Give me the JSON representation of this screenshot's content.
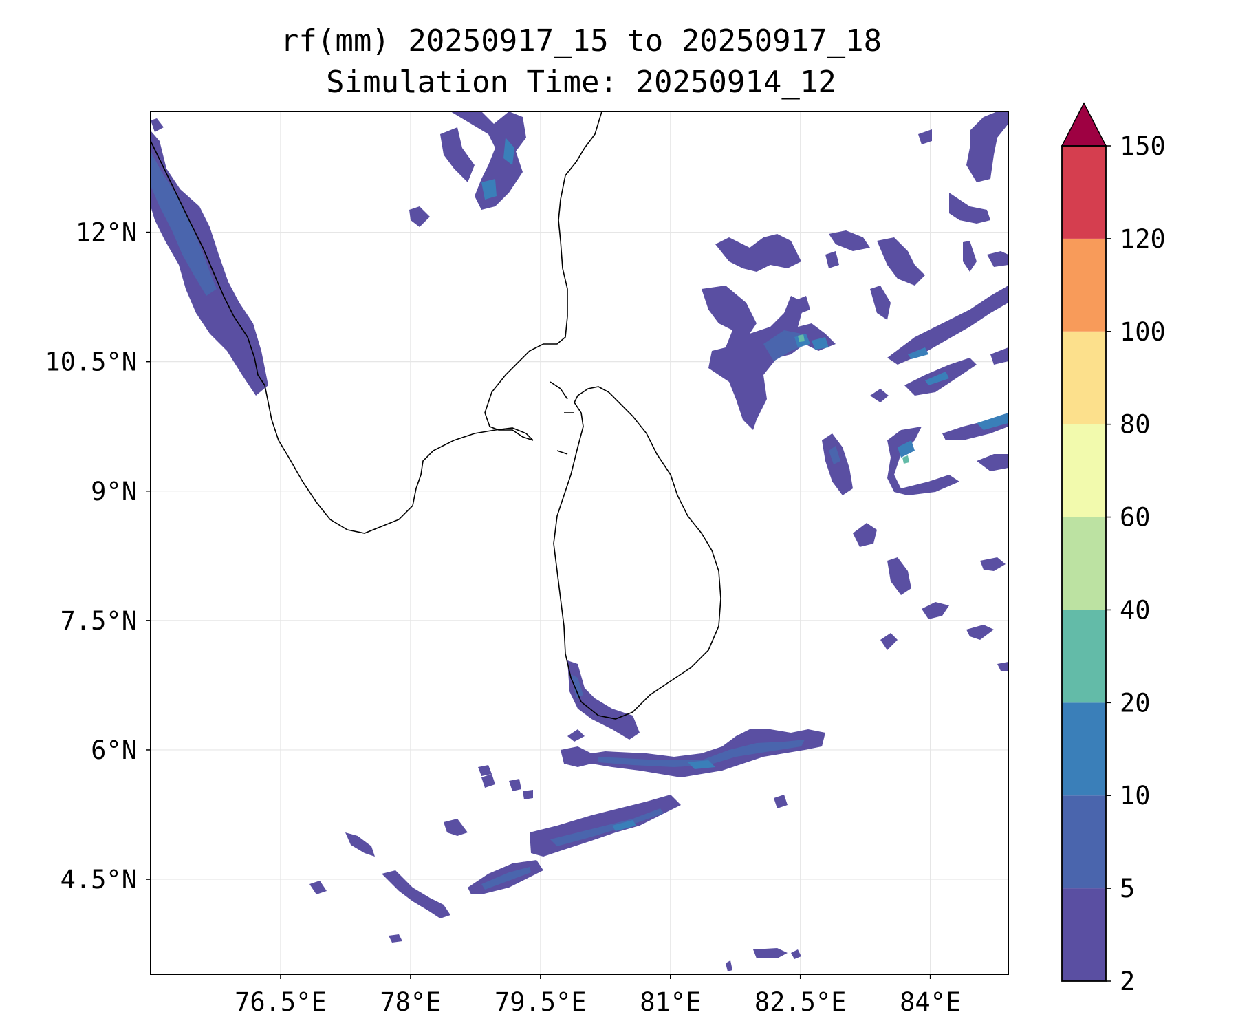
{
  "title_line1": "rf(mm) 20250917_15 to 20250917_18",
  "title_line2": "Simulation Time: 20250914_12",
  "map": {
    "lon_range": [
      75.0,
      84.9
    ],
    "lat_range": [
      3.4,
      13.4
    ],
    "lon_ticks": [
      {
        "value": 76.5,
        "label": "76.5°E"
      },
      {
        "value": 78.0,
        "label": "78°E"
      },
      {
        "value": 79.5,
        "label": "79.5°E"
      },
      {
        "value": 81.0,
        "label": "81°E"
      },
      {
        "value": 82.5,
        "label": "82.5°E"
      },
      {
        "value": 84.0,
        "label": "84°E"
      }
    ],
    "lat_ticks": [
      {
        "value": 12.0,
        "label": "12°N"
      },
      {
        "value": 10.5,
        "label": "10.5°N"
      },
      {
        "value": 9.0,
        "label": "9°N"
      },
      {
        "value": 7.5,
        "label": "7.5°N"
      },
      {
        "value": 6.0,
        "label": "6°N"
      },
      {
        "value": 4.5,
        "label": "4.5°N"
      }
    ],
    "grid": true
  },
  "colorbar": {
    "levels": [
      {
        "label": "2",
        "color": "#5a4fa2"
      },
      {
        "label": "5",
        "color": "#4a65ad"
      },
      {
        "label": "10",
        "color": "#3a7fb9"
      },
      {
        "label": "20",
        "color": "#63bba8"
      },
      {
        "label": "40",
        "color": "#bce2a2"
      },
      {
        "label": "60",
        "color": "#f2faad"
      },
      {
        "label": "80",
        "color": "#fce08c"
      },
      {
        "label": "100",
        "color": "#f89b5a"
      },
      {
        "label": "120",
        "color": "#d53e4f"
      },
      {
        "label": "150",
        "color": ""
      }
    ],
    "extend_color": "#9e0142"
  },
  "colors": {
    "land_outline": "#000000",
    "rain_base": "#5a4fa2",
    "rain_mid": "#4a65ad",
    "rain_heavy": "#3a7fb9",
    "rain_peak": "#63bba8"
  }
}
